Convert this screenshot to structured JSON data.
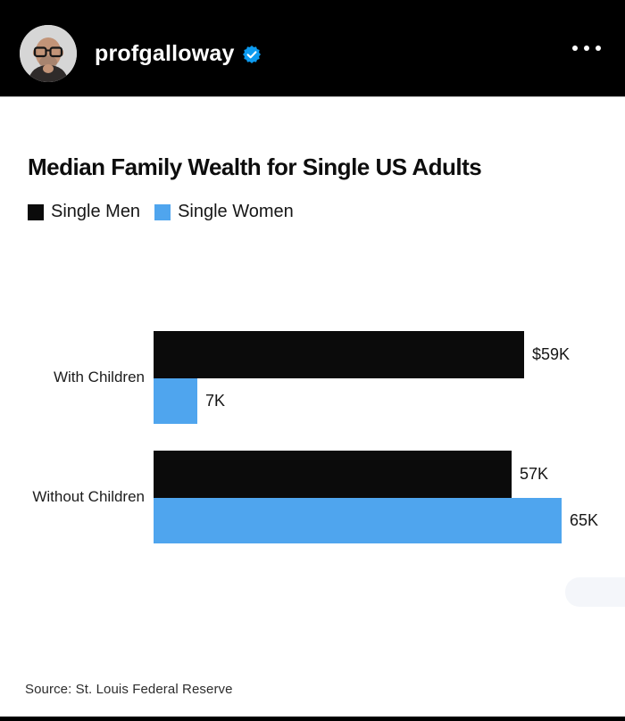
{
  "header": {
    "username": "profgalloway",
    "verified_icon": "verified-checkmark-seal",
    "menu_icon": "three-dots-ellipsis",
    "colors": {
      "background": "#000000",
      "username_text": "#ffffff",
      "badge_blue": "#0d9bf0"
    }
  },
  "chart_data": {
    "type": "bar",
    "orientation": "horizontal",
    "title": "Median Family Wealth for Single US Adults",
    "unit": "thousands of US dollars (K)",
    "categories": [
      "With Children",
      "Without Children"
    ],
    "series": [
      {
        "name": "Single Men",
        "color": "#0b0b0b",
        "values": [
          59,
          57
        ],
        "labels": [
          "$59K",
          "57K"
        ]
      },
      {
        "name": "Single Women",
        "color": "#4fa5ee",
        "values": [
          7,
          65
        ],
        "labels": [
          "7K",
          "65K"
        ]
      }
    ],
    "xlim": [
      0,
      65
    ],
    "grid": false,
    "legend_position": "top-left",
    "value_labels": "outside-end",
    "source": "Source: St. Louis Federal Reserve"
  }
}
